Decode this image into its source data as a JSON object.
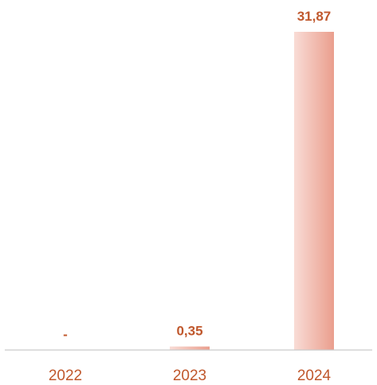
{
  "chart_data": {
    "type": "bar",
    "categories": [
      "2022",
      "2023",
      "2024"
    ],
    "values": [
      0,
      0.35,
      31.87
    ],
    "data_labels": [
      "-",
      "0,35",
      "31,87"
    ],
    "title": "",
    "xlabel": "",
    "ylabel": "",
    "ylim": [
      0,
      31.87
    ],
    "grid": false,
    "legend": "none",
    "colors": {
      "bar_light": "#f9dcd6",
      "bar_dark": "#ea9e8d",
      "label": "#c0582d",
      "axis": "#c9c9c9"
    }
  }
}
